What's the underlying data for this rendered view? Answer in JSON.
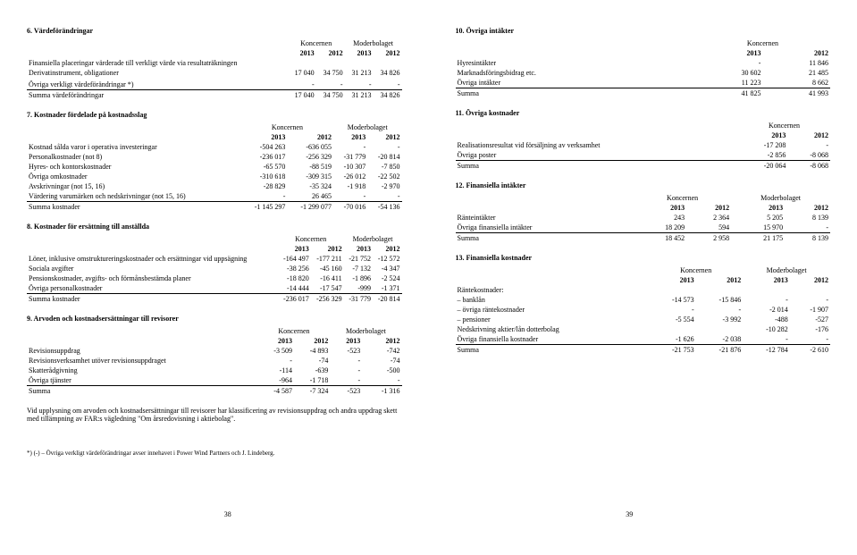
{
  "left": {
    "s6": {
      "title": "6. Värdeförändringar",
      "groups": [
        "Koncernen",
        "Moderbolaget"
      ],
      "years": [
        "2013",
        "2012",
        "2013",
        "2012"
      ],
      "rows": [
        {
          "label": "Finansiella placeringar värderade till verkligt värde via resultaträkningen",
          "vals": [
            "",
            "",
            "",
            ""
          ]
        },
        {
          "label": "Derivatinstrument, obligationer",
          "vals": [
            "17 040",
            "34 750",
            "31 213",
            "34 826"
          ]
        },
        {
          "label": "",
          "vals": [
            "",
            "",
            "",
            ""
          ]
        },
        {
          "label": "Övriga verkligt värdeförändringar *)",
          "vals": [
            "-",
            "-",
            "-",
            "-"
          ]
        },
        {
          "label": "Summa värdeförändringar",
          "vals": [
            "17 040",
            "34 750",
            "31 213",
            "34 826"
          ],
          "sum": true
        }
      ]
    },
    "s7": {
      "title": "7. Kostnader fördelade på kostnadsslag",
      "groups": [
        "Koncernen",
        "Moderbolaget"
      ],
      "years": [
        "2013",
        "2012",
        "2013",
        "2012"
      ],
      "rows": [
        {
          "label": "Kostnad sålda varor i operativa investeringar",
          "vals": [
            "-504 263",
            "-636 055",
            "-",
            "-"
          ]
        },
        {
          "label": "Personalkostnader (not 8)",
          "vals": [
            "-236 017",
            "-256 329",
            "-31 779",
            "-20 814"
          ]
        },
        {
          "label": "Hyres- och kontorskostnader",
          "vals": [
            "-65 570",
            "-88 519",
            "-10 307",
            "-7 850"
          ]
        },
        {
          "label": "Övriga omkostnader",
          "vals": [
            "-310 618",
            "-309 315",
            "-26 012",
            "-22 502"
          ]
        },
        {
          "label": "Avskrivningar (not 15, 16)",
          "vals": [
            "-28 829",
            "-35 324",
            "-1 918",
            "-2 970"
          ]
        },
        {
          "label": "Värdering varumärken och nedskrivningar (not 15, 16)",
          "vals": [
            "-",
            "26 465",
            "-",
            "-"
          ]
        },
        {
          "label": "Summa kostnader",
          "vals": [
            "-1 145 297",
            "-1 299 077",
            "-70 016",
            "-54 136"
          ],
          "sum": true
        }
      ]
    },
    "s8": {
      "title": "8. Kostnader för ersättning till anställda",
      "groups": [
        "Koncernen",
        "Moderbolaget"
      ],
      "years": [
        "2013",
        "2012",
        "2013",
        "2012"
      ],
      "rows": [
        {
          "label": "Löner, inklusive omstruktureringskostnader och ersättningar vid uppsägning",
          "vals": [
            "-164 497",
            "-177 211",
            "-21 752",
            "-12 572"
          ]
        },
        {
          "label": "Sociala avgifter",
          "vals": [
            "-38 256",
            "-45 160",
            "-7 132",
            "-4 347"
          ]
        },
        {
          "label": "Pensionskostnader, avgifts- och förmånsbestämda planer",
          "vals": [
            "-18 820",
            "-16 411",
            "-1 896",
            "-2 524"
          ]
        },
        {
          "label": "Övriga personalkostnader",
          "vals": [
            "-14 444",
            "-17 547",
            "-999",
            "-1 371"
          ]
        },
        {
          "label": "Summa kostnader",
          "vals": [
            "-236 017",
            "-256 329",
            "-31 779",
            "-20 814"
          ],
          "sum": true
        }
      ]
    },
    "s9": {
      "title": "9. Arvoden och kostnadsersättningar till revisorer",
      "groups": [
        "Koncernen",
        "Moderbolaget"
      ],
      "years": [
        "2013",
        "2012",
        "2013",
        "2012"
      ],
      "rows": [
        {
          "label": "Revisionsuppdrag",
          "vals": [
            "-3 509",
            "-4 893",
            "-523",
            "-742"
          ]
        },
        {
          "label": "Revisionsverksamhet utöver revisionsuppdraget",
          "vals": [
            "-",
            "-74",
            "-",
            "-74"
          ]
        },
        {
          "label": "Skatterådgivning",
          "vals": [
            "-114",
            "-639",
            "-",
            "-500"
          ]
        },
        {
          "label": "Övriga tjänster",
          "vals": [
            "-964",
            "-1 718",
            "-",
            "-"
          ]
        },
        {
          "label": "Summa",
          "vals": [
            "-4 587",
            "-7 324",
            "-523",
            "-1 316"
          ],
          "sum": true
        }
      ],
      "note": "Vid upplysning om arvoden och kostnadsersättningar till revisorer har klassificering av revisionsuppdrag och andra uppdrag skett med tillämpning av FAR:s vägledning \"Om årsredovisning i aktiebolag\"."
    },
    "footnote": "*) (-) – Övriga verkligt värdeförändringar avser innehavet i Power Wind Partners och J. Lindeberg.",
    "page": "38"
  },
  "right": {
    "s10": {
      "title": "10. Övriga intäkter",
      "groups": [
        "Koncernen"
      ],
      "years": [
        "2013",
        "2012"
      ],
      "rows": [
        {
          "label": "Hyresintäkter",
          "vals": [
            "-",
            "11 846"
          ]
        },
        {
          "label": "Marknadsföringsbidrag etc.",
          "vals": [
            "30 602",
            "21 485"
          ]
        },
        {
          "label": "Övriga intäkter",
          "vals": [
            "11 223",
            "8 662"
          ]
        },
        {
          "label": "Summa",
          "vals": [
            "41 825",
            "41 993"
          ],
          "sum": true
        }
      ]
    },
    "s11": {
      "title": "11. Övriga kostnader",
      "groups": [
        "Koncernen"
      ],
      "years": [
        "2013",
        "2012"
      ],
      "rows": [
        {
          "label": "Realisationsresultat vid försäljning av verksamhet",
          "vals": [
            "-17 208",
            "-"
          ]
        },
        {
          "label": "Övriga poster",
          "vals": [
            "-2 856",
            "-8 068"
          ]
        },
        {
          "label": "Summa",
          "vals": [
            "-20 064",
            "-8 068"
          ],
          "sum": true
        }
      ]
    },
    "s12": {
      "title": "12. Finansiella intäkter",
      "groups": [
        "Koncernen",
        "Moderbolaget"
      ],
      "years": [
        "2013",
        "2012",
        "2013",
        "2012"
      ],
      "rows": [
        {
          "label": "Ränteintäkter",
          "vals": [
            "243",
            "2 364",
            "5 205",
            "8 139"
          ]
        },
        {
          "label": "Övriga finansiella intäkter",
          "vals": [
            "18 209",
            "594",
            "15 970",
            "-"
          ]
        },
        {
          "label": "Summa",
          "vals": [
            "18 452",
            "2 958",
            "21 175",
            "8 139"
          ],
          "sum": true
        }
      ]
    },
    "s13": {
      "title": "13. Finansiella kostnader",
      "groups": [
        "Koncernen",
        "Moderbolaget"
      ],
      "years": [
        "2013",
        "2012",
        "2013",
        "2012"
      ],
      "rows": [
        {
          "label": "Räntekostnader:",
          "vals": [
            "",
            "",
            "",
            ""
          ]
        },
        {
          "label": "– banklån",
          "vals": [
            "-14 573",
            "-15 846",
            "-",
            "-"
          ]
        },
        {
          "label": "– övriga räntekostnader",
          "vals": [
            "-",
            "-",
            "-2 014",
            "-1 907"
          ]
        },
        {
          "label": "– pensioner",
          "vals": [
            "-5 554",
            "-3 992",
            "-488",
            "-527"
          ]
        },
        {
          "label": "Nedskrivning aktier/lån dotterbolag",
          "vals": [
            "",
            "",
            "-10 282",
            "-176"
          ]
        },
        {
          "label": "Övriga finansiella kostnader",
          "vals": [
            "-1 626",
            "-2 038",
            "-",
            "-"
          ]
        },
        {
          "label": "Summa",
          "vals": [
            "-21 753",
            "-21 876",
            "-12 784",
            "-2 610"
          ],
          "sum": true
        }
      ]
    },
    "page": "39"
  }
}
